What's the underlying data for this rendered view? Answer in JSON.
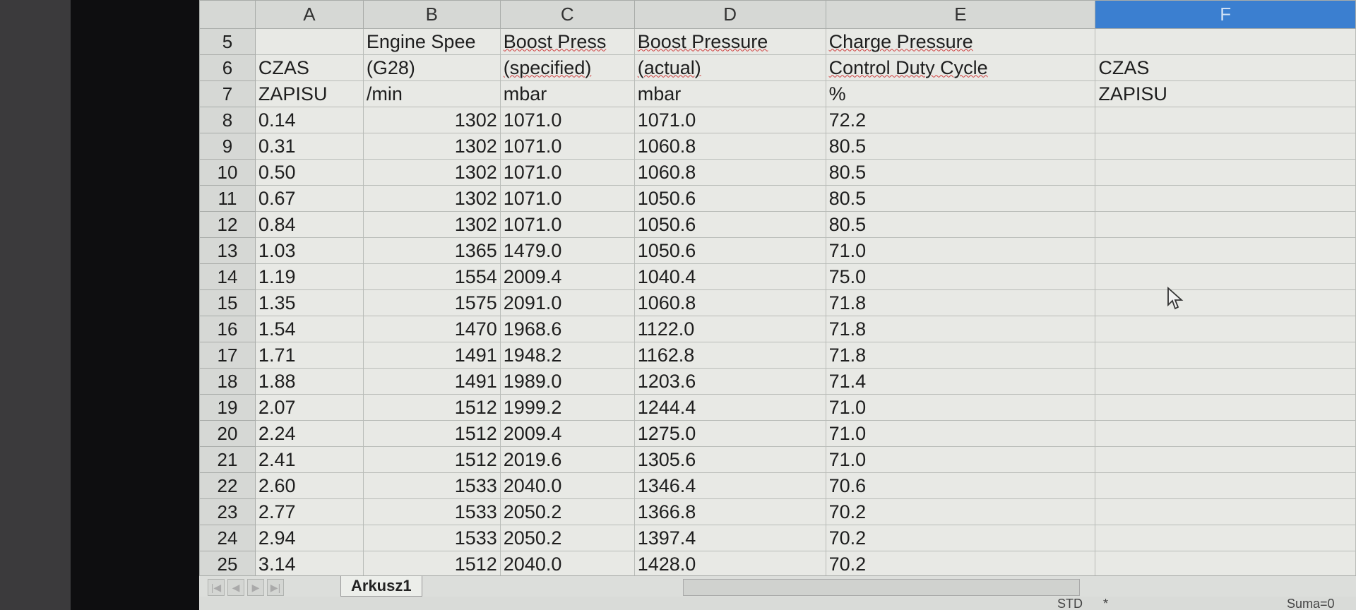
{
  "columns": [
    "",
    "A",
    "B",
    "C",
    "D",
    "E",
    "F"
  ],
  "selected_column": "F",
  "header_rows": [
    {
      "row": "5",
      "cells": [
        "",
        "Engine Spee",
        "Boost Press",
        "Boost Pressure",
        "Charge Pressure",
        ""
      ]
    },
    {
      "row": "6",
      "cells": [
        "CZAS",
        "(G28)",
        "(specified)",
        "(actual)",
        "Control Duty Cycle",
        "CZAS"
      ]
    },
    {
      "row": "7",
      "cells": [
        "ZAPISU",
        " /min",
        "  mbar",
        " mbar",
        " %",
        "ZAPISU"
      ]
    }
  ],
  "rows": [
    {
      "row": "8",
      "cells": [
        "0.14",
        "1302",
        "1071.0",
        "1071.0",
        "72.2",
        ""
      ]
    },
    {
      "row": "9",
      "cells": [
        "0.31",
        "1302",
        "1071.0",
        "1060.8",
        "80.5",
        ""
      ]
    },
    {
      "row": "10",
      "cells": [
        "0.50",
        "1302",
        "1071.0",
        "1060.8",
        "80.5",
        ""
      ]
    },
    {
      "row": "11",
      "cells": [
        "0.67",
        "1302",
        "1071.0",
        "1050.6",
        "80.5",
        ""
      ]
    },
    {
      "row": "12",
      "cells": [
        "0.84",
        "1302",
        "1071.0",
        "1050.6",
        "80.5",
        ""
      ]
    },
    {
      "row": "13",
      "cells": [
        "1.03",
        "1365",
        "1479.0",
        "1050.6",
        "71.0",
        ""
      ]
    },
    {
      "row": "14",
      "cells": [
        "1.19",
        "1554",
        "2009.4",
        "1040.4",
        "75.0",
        ""
      ]
    },
    {
      "row": "15",
      "cells": [
        "1.35",
        "1575",
        "2091.0",
        "1060.8",
        "71.8",
        ""
      ]
    },
    {
      "row": "16",
      "cells": [
        "1.54",
        "1470",
        "1968.6",
        "1122.0",
        "71.8",
        ""
      ]
    },
    {
      "row": "17",
      "cells": [
        "1.71",
        "1491",
        "1948.2",
        "1162.8",
        "71.8",
        ""
      ]
    },
    {
      "row": "18",
      "cells": [
        "1.88",
        "1491",
        "1989.0",
        "1203.6",
        "71.4",
        ""
      ]
    },
    {
      "row": "19",
      "cells": [
        "2.07",
        "1512",
        "1999.2",
        "1244.4",
        "71.0",
        ""
      ]
    },
    {
      "row": "20",
      "cells": [
        "2.24",
        "1512",
        "2009.4",
        "1275.0",
        "71.0",
        ""
      ]
    },
    {
      "row": "21",
      "cells": [
        "2.41",
        "1512",
        "2019.6",
        "1305.6",
        "71.0",
        ""
      ]
    },
    {
      "row": "22",
      "cells": [
        "2.60",
        "1533",
        "2040.0",
        "1346.4",
        "70.6",
        ""
      ]
    },
    {
      "row": "23",
      "cells": [
        "2.77",
        "1533",
        "2050.2",
        "1366.8",
        "70.2",
        ""
      ]
    },
    {
      "row": "24",
      "cells": [
        "2.94",
        "1533",
        "2050.2",
        "1397.4",
        "70.2",
        ""
      ]
    },
    {
      "row": "25",
      "cells": [
        "3.14",
        "1512",
        "2040.0",
        "1428.0",
        "70.2",
        ""
      ]
    }
  ],
  "sheet_tabs": [
    "Arkusz1"
  ],
  "status_bar": {
    "mode": "STD",
    "modified": "*",
    "sum": "Suma=0"
  },
  "colors": {
    "selected_header": "#3b7fd0",
    "spellcheck": "#d04040"
  }
}
